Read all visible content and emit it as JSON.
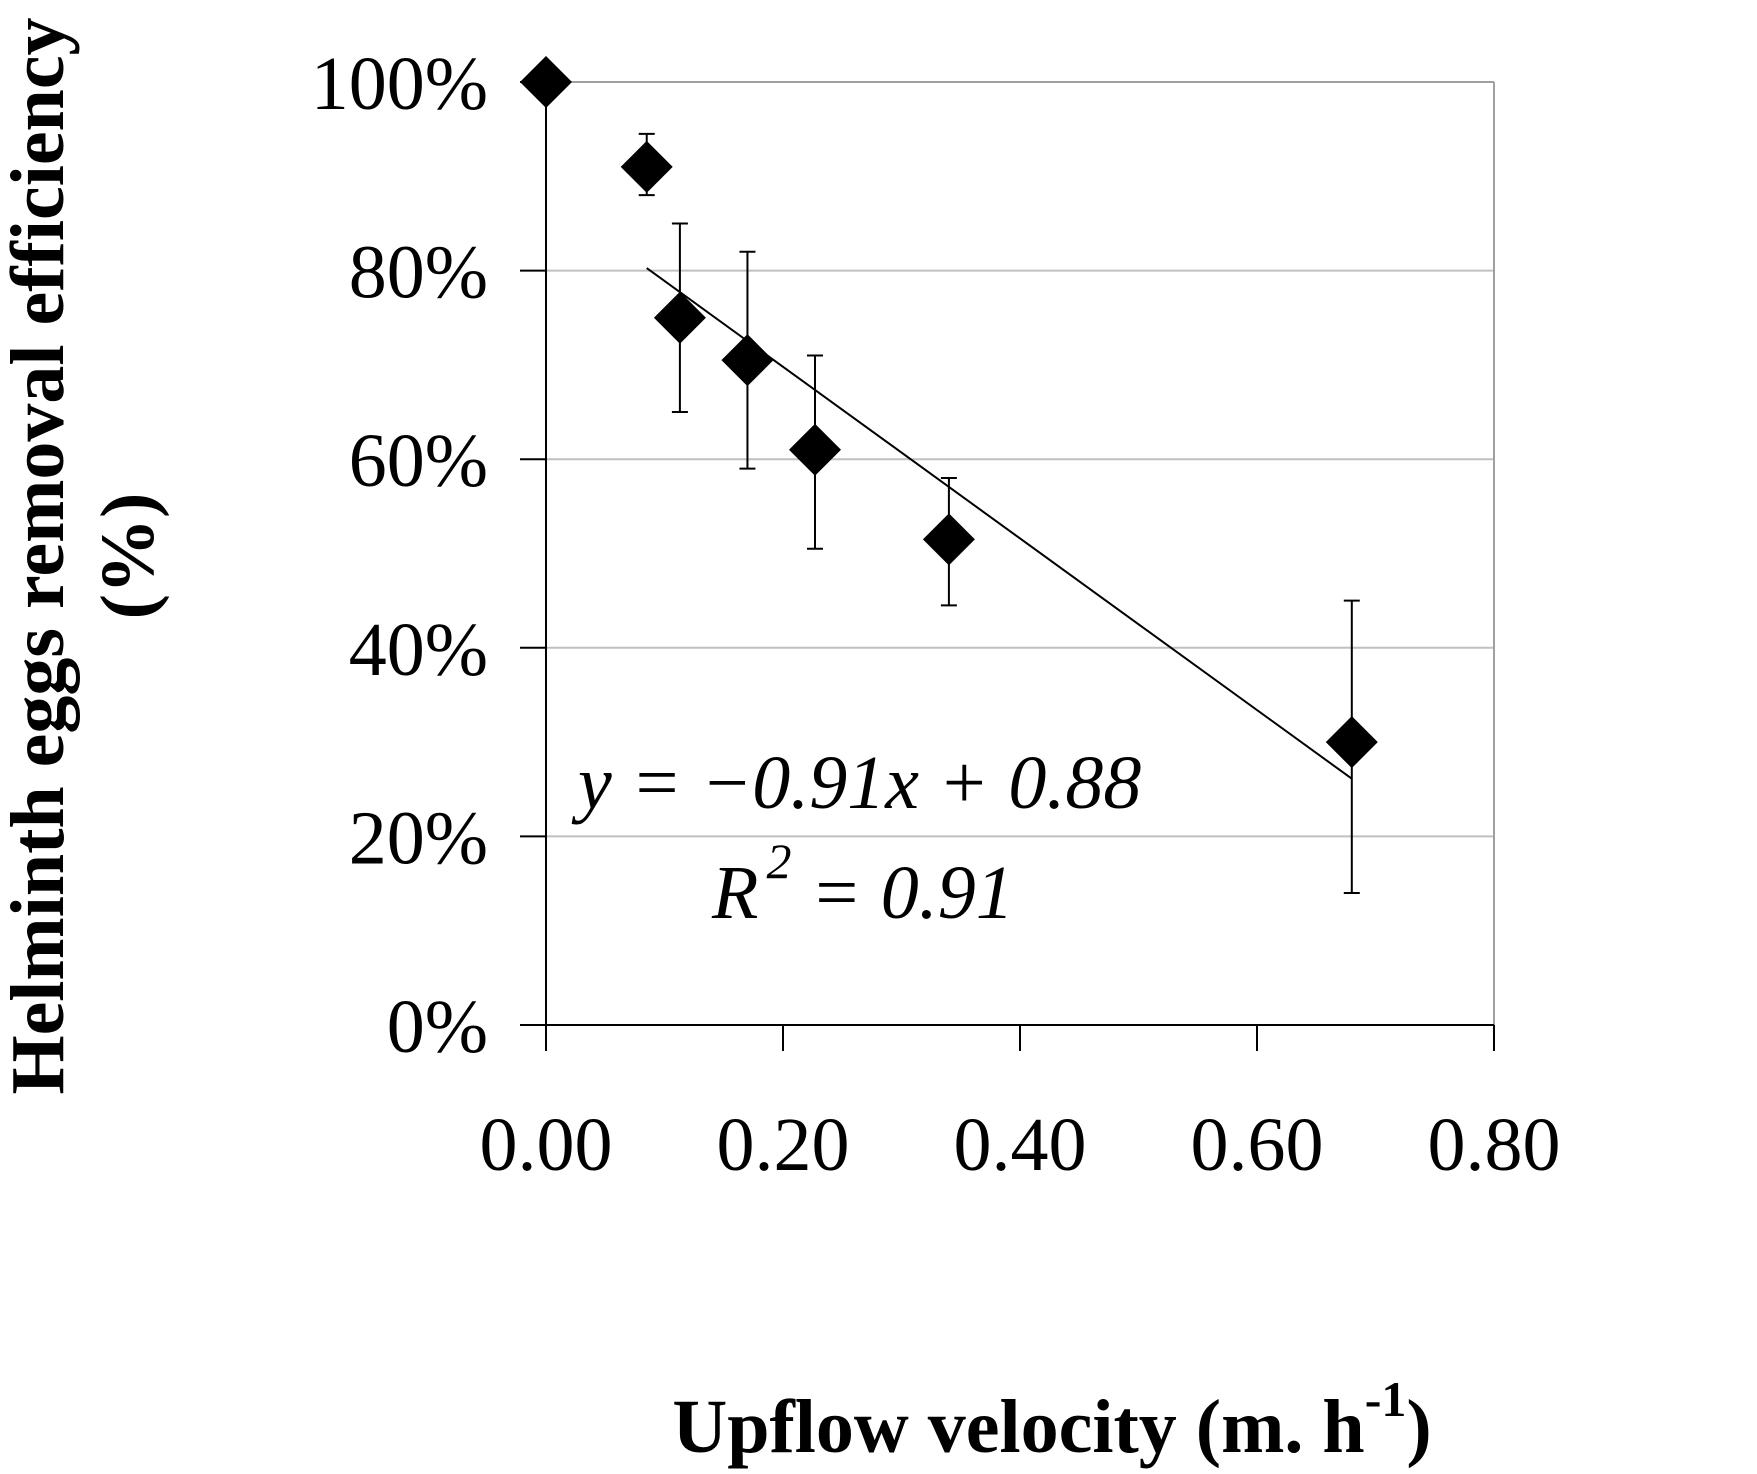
{
  "chart_data": {
    "type": "scatter",
    "title": "",
    "xlabel": "Upflow velocity (m. h",
    "xlabel_sup": "-1",
    "xlabel_end": ")",
    "ylabel_line1": "Helminth eggs removal efficiency",
    "ylabel_line2": "(%)",
    "xlim": [
      0,
      0.8
    ],
    "ylim": [
      0,
      1
    ],
    "x_ticks": [
      0,
      0.2,
      0.4,
      0.6,
      0.8
    ],
    "x_tick_labels": [
      "0.00",
      "0.20",
      "0.40",
      "0.60",
      "0.80"
    ],
    "y_ticks": [
      0,
      0.2,
      0.4,
      0.6,
      0.8,
      1.0
    ],
    "y_tick_labels": [
      "0%",
      "20%",
      "40%",
      "60%",
      "80%",
      "100%"
    ],
    "grid": "horizontal",
    "series": [
      {
        "name": "Helminth eggs removal efficiency",
        "marker": "diamond",
        "points": [
          {
            "x": 0.0,
            "y": 1.0,
            "err_low": 0.0,
            "err_high": 0.0
          },
          {
            "x": 0.085,
            "y": 0.91,
            "err_low": 0.88,
            "err_high": 0.945
          },
          {
            "x": 0.113,
            "y": 0.75,
            "err_low": 0.65,
            "err_high": 0.85
          },
          {
            "x": 0.17,
            "y": 0.705,
            "err_low": 0.59,
            "err_high": 0.82
          },
          {
            "x": 0.227,
            "y": 0.61,
            "err_low": 0.505,
            "err_high": 0.71
          },
          {
            "x": 0.34,
            "y": 0.515,
            "err_low": 0.445,
            "err_high": 0.58
          },
          {
            "x": 0.68,
            "y": 0.3,
            "err_low": 0.14,
            "err_high": 0.45
          }
        ]
      }
    ],
    "trendline": {
      "slope": -0.91,
      "intercept": 0.88,
      "x_range": [
        0.085,
        0.68
      ]
    },
    "annotations": {
      "equation": "y = −0.91x + 0.88",
      "r2_prefix": "R",
      "r2_sup": "2",
      "r2_suffix": " = 0.91"
    }
  }
}
